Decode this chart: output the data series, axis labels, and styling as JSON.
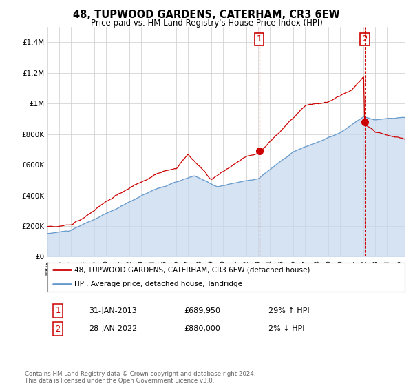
{
  "title": "48, TUPWOOD GARDENS, CATERHAM, CR3 6EW",
  "subtitle": "Price paid vs. HM Land Registry's House Price Index (HPI)",
  "legend_line1": "48, TUPWOOD GARDENS, CATERHAM, CR3 6EW (detached house)",
  "legend_line2": "HPI: Average price, detached house, Tandridge",
  "footer": "Contains HM Land Registry data © Crown copyright and database right 2024.\nThis data is licensed under the Open Government Licence v3.0.",
  "transaction1_label": "1",
  "transaction1_date": "31-JAN-2013",
  "transaction1_price": "£689,950",
  "transaction1_hpi": "29% ↑ HPI",
  "transaction2_label": "2",
  "transaction2_date": "28-JAN-2022",
  "transaction2_price": "£880,000",
  "transaction2_hpi": "2% ↓ HPI",
  "vline1_x": 2013.08,
  "vline2_x": 2022.08,
  "point1_x": 2013.08,
  "point1_y": 689950,
  "point2_x": 2022.08,
  "point2_y": 880000,
  "ylim": [
    0,
    1500000
  ],
  "xlim": [
    1995,
    2025.5
  ],
  "red_color": "#cc0000",
  "blue_color": "#6699cc",
  "blue_fill_color": "#c5d8ee",
  "vline_color": "#cc0000",
  "background_color": "#ffffff",
  "grid_color": "#cccccc"
}
